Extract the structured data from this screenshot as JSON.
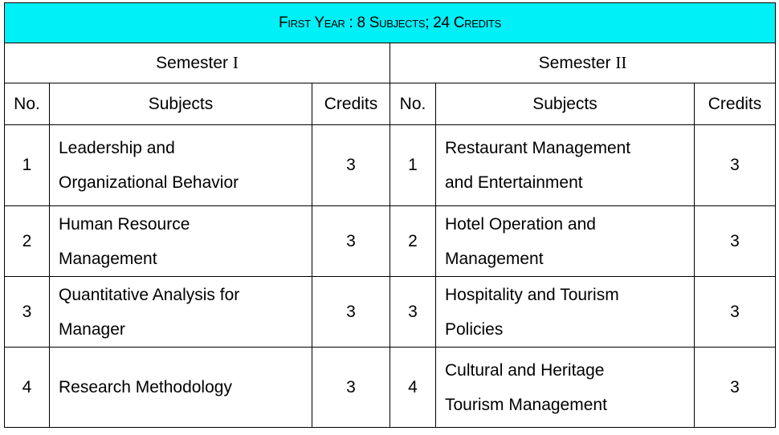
{
  "title": "First Year : 8 Subjects; 24 Credits",
  "semesters": [
    {
      "name_prefix": "Semester",
      "name_numeral": "I",
      "headers": {
        "no": "No.",
        "subjects": "Subjects",
        "credits": "Credits"
      },
      "rows": [
        {
          "no": "1",
          "subject_line1": "Leadership and",
          "subject_line2": "Organizational Behavior",
          "credits": "3"
        },
        {
          "no": "2",
          "subject_line1": "Human Resource",
          "subject_line2": "Management",
          "credits": "3"
        },
        {
          "no": "3",
          "subject_line1": "Quantitative Analysis for",
          "subject_line2": "Manager",
          "credits": "3"
        },
        {
          "no": "4",
          "subject_line1": "Research Methodology",
          "subject_line2": "",
          "credits": "3"
        }
      ]
    },
    {
      "name_prefix": "Semester",
      "name_numeral": "II",
      "headers": {
        "no": "No.",
        "subjects": "Subjects",
        "credits": "Credits"
      },
      "rows": [
        {
          "no": "1",
          "subject_line1": "Restaurant Management",
          "subject_line2": "and Entertainment",
          "credits": "3"
        },
        {
          "no": "2",
          "subject_line1": "Hotel Operation and",
          "subject_line2": "Management",
          "credits": "3"
        },
        {
          "no": "3",
          "subject_line1": "Hospitality and Tourism",
          "subject_line2": "Policies",
          "credits": "3"
        },
        {
          "no": "4",
          "subject_line1": "Cultural and Heritage",
          "subject_line2": "Tourism Management",
          "credits": "3"
        }
      ]
    }
  ]
}
